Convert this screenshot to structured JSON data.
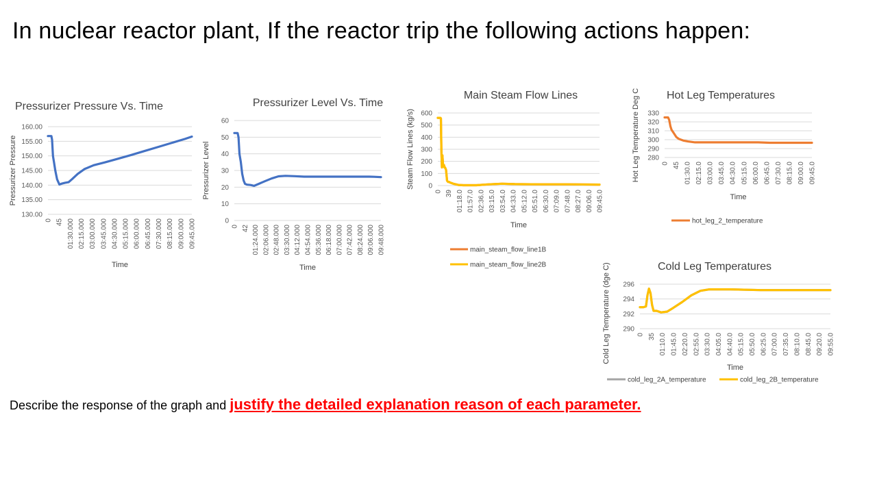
{
  "slide": {
    "title": "In nuclear reactor plant, If the reactor trip the following actions happen:",
    "prompt_plain": "Describe the response of the graph and ",
    "prompt_emphasis": "justify the detailed explanation reason of each parameter."
  },
  "chart_data": [
    {
      "id": "pressure",
      "type": "line",
      "title": "Pressurizer Pressure Vs. Time",
      "xlabel": "Time",
      "ylabel": "Pressurizer Pressure",
      "ylim": [
        130,
        160
      ],
      "yticks": [
        "160.00",
        "155.00",
        "150.00",
        "145.00",
        "140.00",
        "135.00",
        "130.00"
      ],
      "xticks": [
        "0",
        "45",
        "01:30.000",
        "02:15.000",
        "03:00.000",
        "03:45.000",
        "04:30.000",
        "05:15.000",
        "06:00.000",
        "06:45.000",
        "07:30.000",
        "08:15.000",
        "09:00.000",
        "09:45.000"
      ],
      "x_range_seconds": [
        0,
        630
      ],
      "grid": true,
      "series": [
        {
          "color": "#4472c4",
          "x": [
            0,
            15,
            18,
            22,
            26,
            32,
            40,
            50,
            60,
            75,
            90,
            105,
            130,
            160,
            200,
            250,
            300,
            360,
            420,
            480,
            540,
            600,
            630
          ],
          "y": [
            156.8,
            156.8,
            155.5,
            150,
            148,
            145,
            142,
            140.2,
            140.5,
            140.8,
            141,
            142,
            143.8,
            145.5,
            146.8,
            147.8,
            148.9,
            150.2,
            151.6,
            153.0,
            154.4,
            155.8,
            156.6
          ]
        }
      ]
    },
    {
      "id": "level",
      "type": "line",
      "title": "Pressurizer Level Vs. Time",
      "xlabel": "Time",
      "ylabel": "Pressurizer Level",
      "ylim": [
        0,
        60
      ],
      "yticks": [
        "60",
        "50",
        "40",
        "30",
        "20",
        "10",
        "0"
      ],
      "xticks": [
        "0",
        "42",
        "01:24.000",
        "02:06.000",
        "02:48.000",
        "03:30.000",
        "04:12.000",
        "04:54.000",
        "05:36.000",
        "06:18.000",
        "07:00.000",
        "07:42.000",
        "08:24.000",
        "09:06.000",
        "09:48.000"
      ],
      "x_range_seconds": [
        0,
        630
      ],
      "grid": true,
      "series": [
        {
          "color": "#4472c4",
          "x": [
            0,
            14,
            18,
            22,
            28,
            34,
            40,
            46,
            55,
            70,
            85,
            105,
            130,
            160,
            190,
            220,
            260,
            300,
            400,
            500,
            580,
            600,
            630
          ],
          "y": [
            52.5,
            52.5,
            50,
            40,
            35,
            28,
            24,
            22,
            21.5,
            21.3,
            20.8,
            22,
            23.5,
            25.2,
            26.5,
            26.8,
            26.6,
            26.3,
            26.3,
            26.3,
            26.3,
            26.2,
            26.0
          ]
        }
      ]
    },
    {
      "id": "steam",
      "type": "line",
      "title": "Main Steam Flow Lines",
      "xlabel": "Time",
      "ylabel": "Steam Flow Lines (kg/s)",
      "ylim": [
        0,
        600
      ],
      "yticks": [
        "600",
        "500",
        "400",
        "300",
        "200",
        "100",
        "0"
      ],
      "xticks": [
        "0",
        "39",
        "01:18.0",
        "01:57.0",
        "02:36.0",
        "03:15.0",
        "03:54.0",
        "04:33.0",
        "05:12.0",
        "05:51.0",
        "06:30.0",
        "07:09.0",
        "07:48.0",
        "08:27.0",
        "09:06.0",
        "09:45.0"
      ],
      "x_range_seconds": [
        0,
        630
      ],
      "grid": true,
      "legend": [
        "main_steam_flow_line1B",
        "main_steam_flow_line2B"
      ],
      "legend_position": "bottom",
      "series": [
        {
          "name": "main_steam_flow_line1B",
          "color": "#ed7d31",
          "x": [
            0,
            10,
            12,
            14,
            16,
            18,
            20,
            22,
            24,
            26,
            28,
            32,
            36,
            40,
            44,
            48,
            60,
            80,
            100,
            120,
            150,
            200,
            250,
            300,
            400,
            500,
            630
          ],
          "y": [
            560,
            560,
            555,
            300,
            150,
            250,
            180,
            160,
            170,
            150,
            150,
            130,
            40,
            30,
            30,
            25,
            15,
            5,
            3,
            3,
            3,
            10,
            15,
            12,
            10,
            10,
            8
          ]
        },
        {
          "name": "main_steam_flow_line2B",
          "color": "#ffc000",
          "x": [
            0,
            10,
            12,
            14,
            16,
            18,
            20,
            22,
            24,
            26,
            28,
            32,
            36,
            40,
            44,
            48,
            60,
            80,
            100,
            120,
            150,
            200,
            250,
            300,
            400,
            500,
            630
          ],
          "y": [
            560,
            560,
            555,
            300,
            150,
            250,
            180,
            160,
            170,
            150,
            150,
            130,
            40,
            30,
            30,
            25,
            15,
            5,
            3,
            3,
            3,
            10,
            15,
            12,
            10,
            10,
            8
          ]
        }
      ]
    },
    {
      "id": "hotleg",
      "type": "line",
      "title": "Hot Leg Temperatures",
      "xlabel": "Time",
      "ylabel": "Hot Leg Temperature Deg C",
      "ylim": [
        280,
        330
      ],
      "yticks": [
        "330",
        "320",
        "310",
        "300",
        "290",
        "280"
      ],
      "xticks": [
        "0",
        "45",
        "01:30.0",
        "02:15.0",
        "03:00.0",
        "03:45.0",
        "04:30.0",
        "05:15.0",
        "06:00.0",
        "06:45.0",
        "07:30.0",
        "08:15.0",
        "09:00.0",
        "09:45.0"
      ],
      "x_range_seconds": [
        0,
        630
      ],
      "grid": true,
      "legend": [
        "hot_leg_2_temperature"
      ],
      "legend_position": "bottom",
      "series": [
        {
          "name": "hot_leg_2_temperature",
          "color": "#ed7d31",
          "x": [
            0,
            15,
            20,
            25,
            30,
            40,
            50,
            60,
            80,
            100,
            130,
            160,
            200,
            300,
            400,
            450,
            500,
            630
          ],
          "y": [
            325,
            325,
            322,
            315,
            311,
            307,
            303,
            301,
            299,
            298,
            297,
            297,
            297,
            297,
            297,
            296.5,
            296.5,
            296.5
          ]
        }
      ]
    },
    {
      "id": "coldleg",
      "type": "line",
      "title": "Cold Leg Temperatures",
      "xlabel": "Time",
      "ylabel": "Cold Leg Temperature (dge C)",
      "ylim": [
        290,
        296
      ],
      "yticks": [
        "296",
        "294",
        "292",
        "290"
      ],
      "xticks": [
        "0",
        "35",
        "01:10.0",
        "01:45.0",
        "02:20.0",
        "02:55.0",
        "03:30.0",
        "04:05.0",
        "04:40.0",
        "05:15.0",
        "05:50.0",
        "06:25.0",
        "07:00.0",
        "07:35.0",
        "08:10.0",
        "08:45.0",
        "09:20.0",
        "09:55.0"
      ],
      "x_range_seconds": [
        0,
        630
      ],
      "grid": true,
      "legend": [
        "cold_leg_2A_temperature",
        "cold_leg_2B_temperature"
      ],
      "legend_position": "bottom",
      "series": [
        {
          "name": "cold_leg_2A_temperature",
          "color": "#a5a5a5",
          "x": [
            0,
            12,
            20,
            25,
            30,
            35,
            40,
            45,
            55,
            70,
            90,
            110,
            140,
            170,
            200,
            230,
            260,
            300,
            400,
            500,
            630
          ],
          "y": [
            292.9,
            292.9,
            293,
            294.5,
            295.4,
            294.8,
            293.2,
            292.4,
            292.4,
            292.2,
            292.3,
            292.8,
            293.6,
            294.5,
            295.1,
            295.3,
            295.3,
            295.3,
            295.2,
            295.2,
            295.2
          ]
        },
        {
          "name": "cold_leg_2B_temperature",
          "color": "#ffc000",
          "x": [
            0,
            12,
            20,
            25,
            30,
            35,
            40,
            45,
            55,
            70,
            90,
            110,
            140,
            170,
            200,
            230,
            260,
            300,
            400,
            500,
            630
          ],
          "y": [
            292.9,
            292.9,
            293,
            294.5,
            295.4,
            294.8,
            293.2,
            292.4,
            292.4,
            292.2,
            292.3,
            292.8,
            293.6,
            294.5,
            295.1,
            295.3,
            295.3,
            295.3,
            295.2,
            295.2,
            295.2
          ]
        }
      ]
    }
  ]
}
